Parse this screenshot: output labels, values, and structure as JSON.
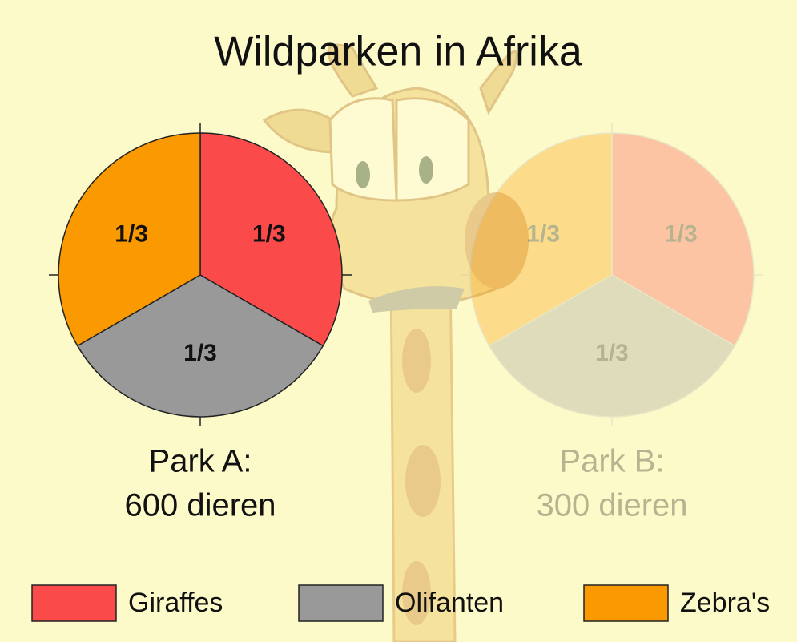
{
  "chart_data": {
    "type": "pie",
    "title": "Wildparken in Afrika",
    "categories": [
      "Giraffes",
      "Olifanten",
      "Zebra's"
    ],
    "colors": [
      "#fb4a4a",
      "#999999",
      "#fb9a00"
    ],
    "pies": [
      {
        "label_lines": [
          "Park A:",
          "600 dieren"
        ],
        "values": [
          0.333333,
          0.333333,
          0.333333
        ],
        "value_labels": [
          "1/3",
          "1/3",
          "1/3"
        ],
        "opacity": 1
      },
      {
        "label_lines": [
          "Park B:",
          "300 dieren"
        ],
        "values": [
          0.333333,
          0.333333,
          0.333333
        ],
        "value_labels": [
          "1/3",
          "1/3",
          "1/3"
        ],
        "opacity": 0.3
      }
    ]
  }
}
